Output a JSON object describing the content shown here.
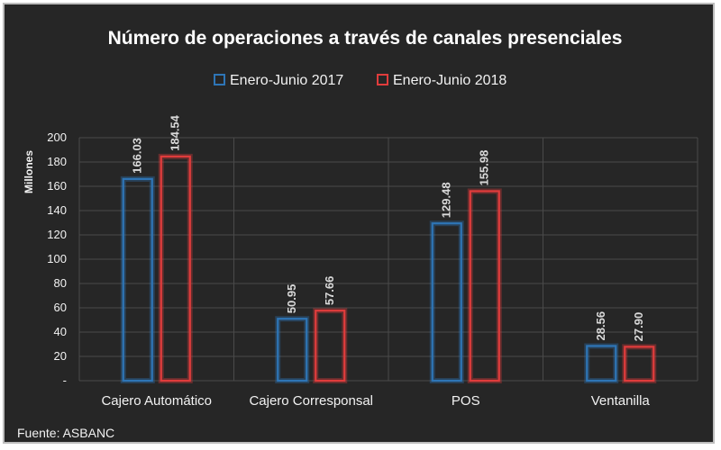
{
  "chart_data": {
    "type": "bar",
    "title": "Número de operaciones a través de canales presenciales",
    "ylabel": "Millones",
    "xlabel": "",
    "ylim": [
      0,
      200
    ],
    "ytick_step": 20,
    "ytick_labels": [
      "-",
      "20",
      "40",
      "60",
      "80",
      "100",
      "120",
      "140",
      "160",
      "180",
      "200"
    ],
    "categories": [
      "Cajero Automático",
      "Cajero Corresponsal",
      "POS",
      "Ventanilla"
    ],
    "series": [
      {
        "name": "Enero-Junio 2017",
        "color": "#2e75b6",
        "values": [
          166.03,
          50.95,
          129.48,
          28.56
        ],
        "labels": [
          "166.03",
          "50.95",
          "129.48",
          "28.56"
        ]
      },
      {
        "name": "Enero-Junio 2018",
        "color": "#e03c3c",
        "values": [
          184.54,
          57.66,
          155.98,
          27.9
        ],
        "labels": [
          "184.54",
          "57.66",
          "155.98",
          "27.90"
        ]
      }
    ],
    "grid": true,
    "legend_position": "top-center",
    "background": "#262626"
  },
  "source": "Fuente: ASBANC"
}
